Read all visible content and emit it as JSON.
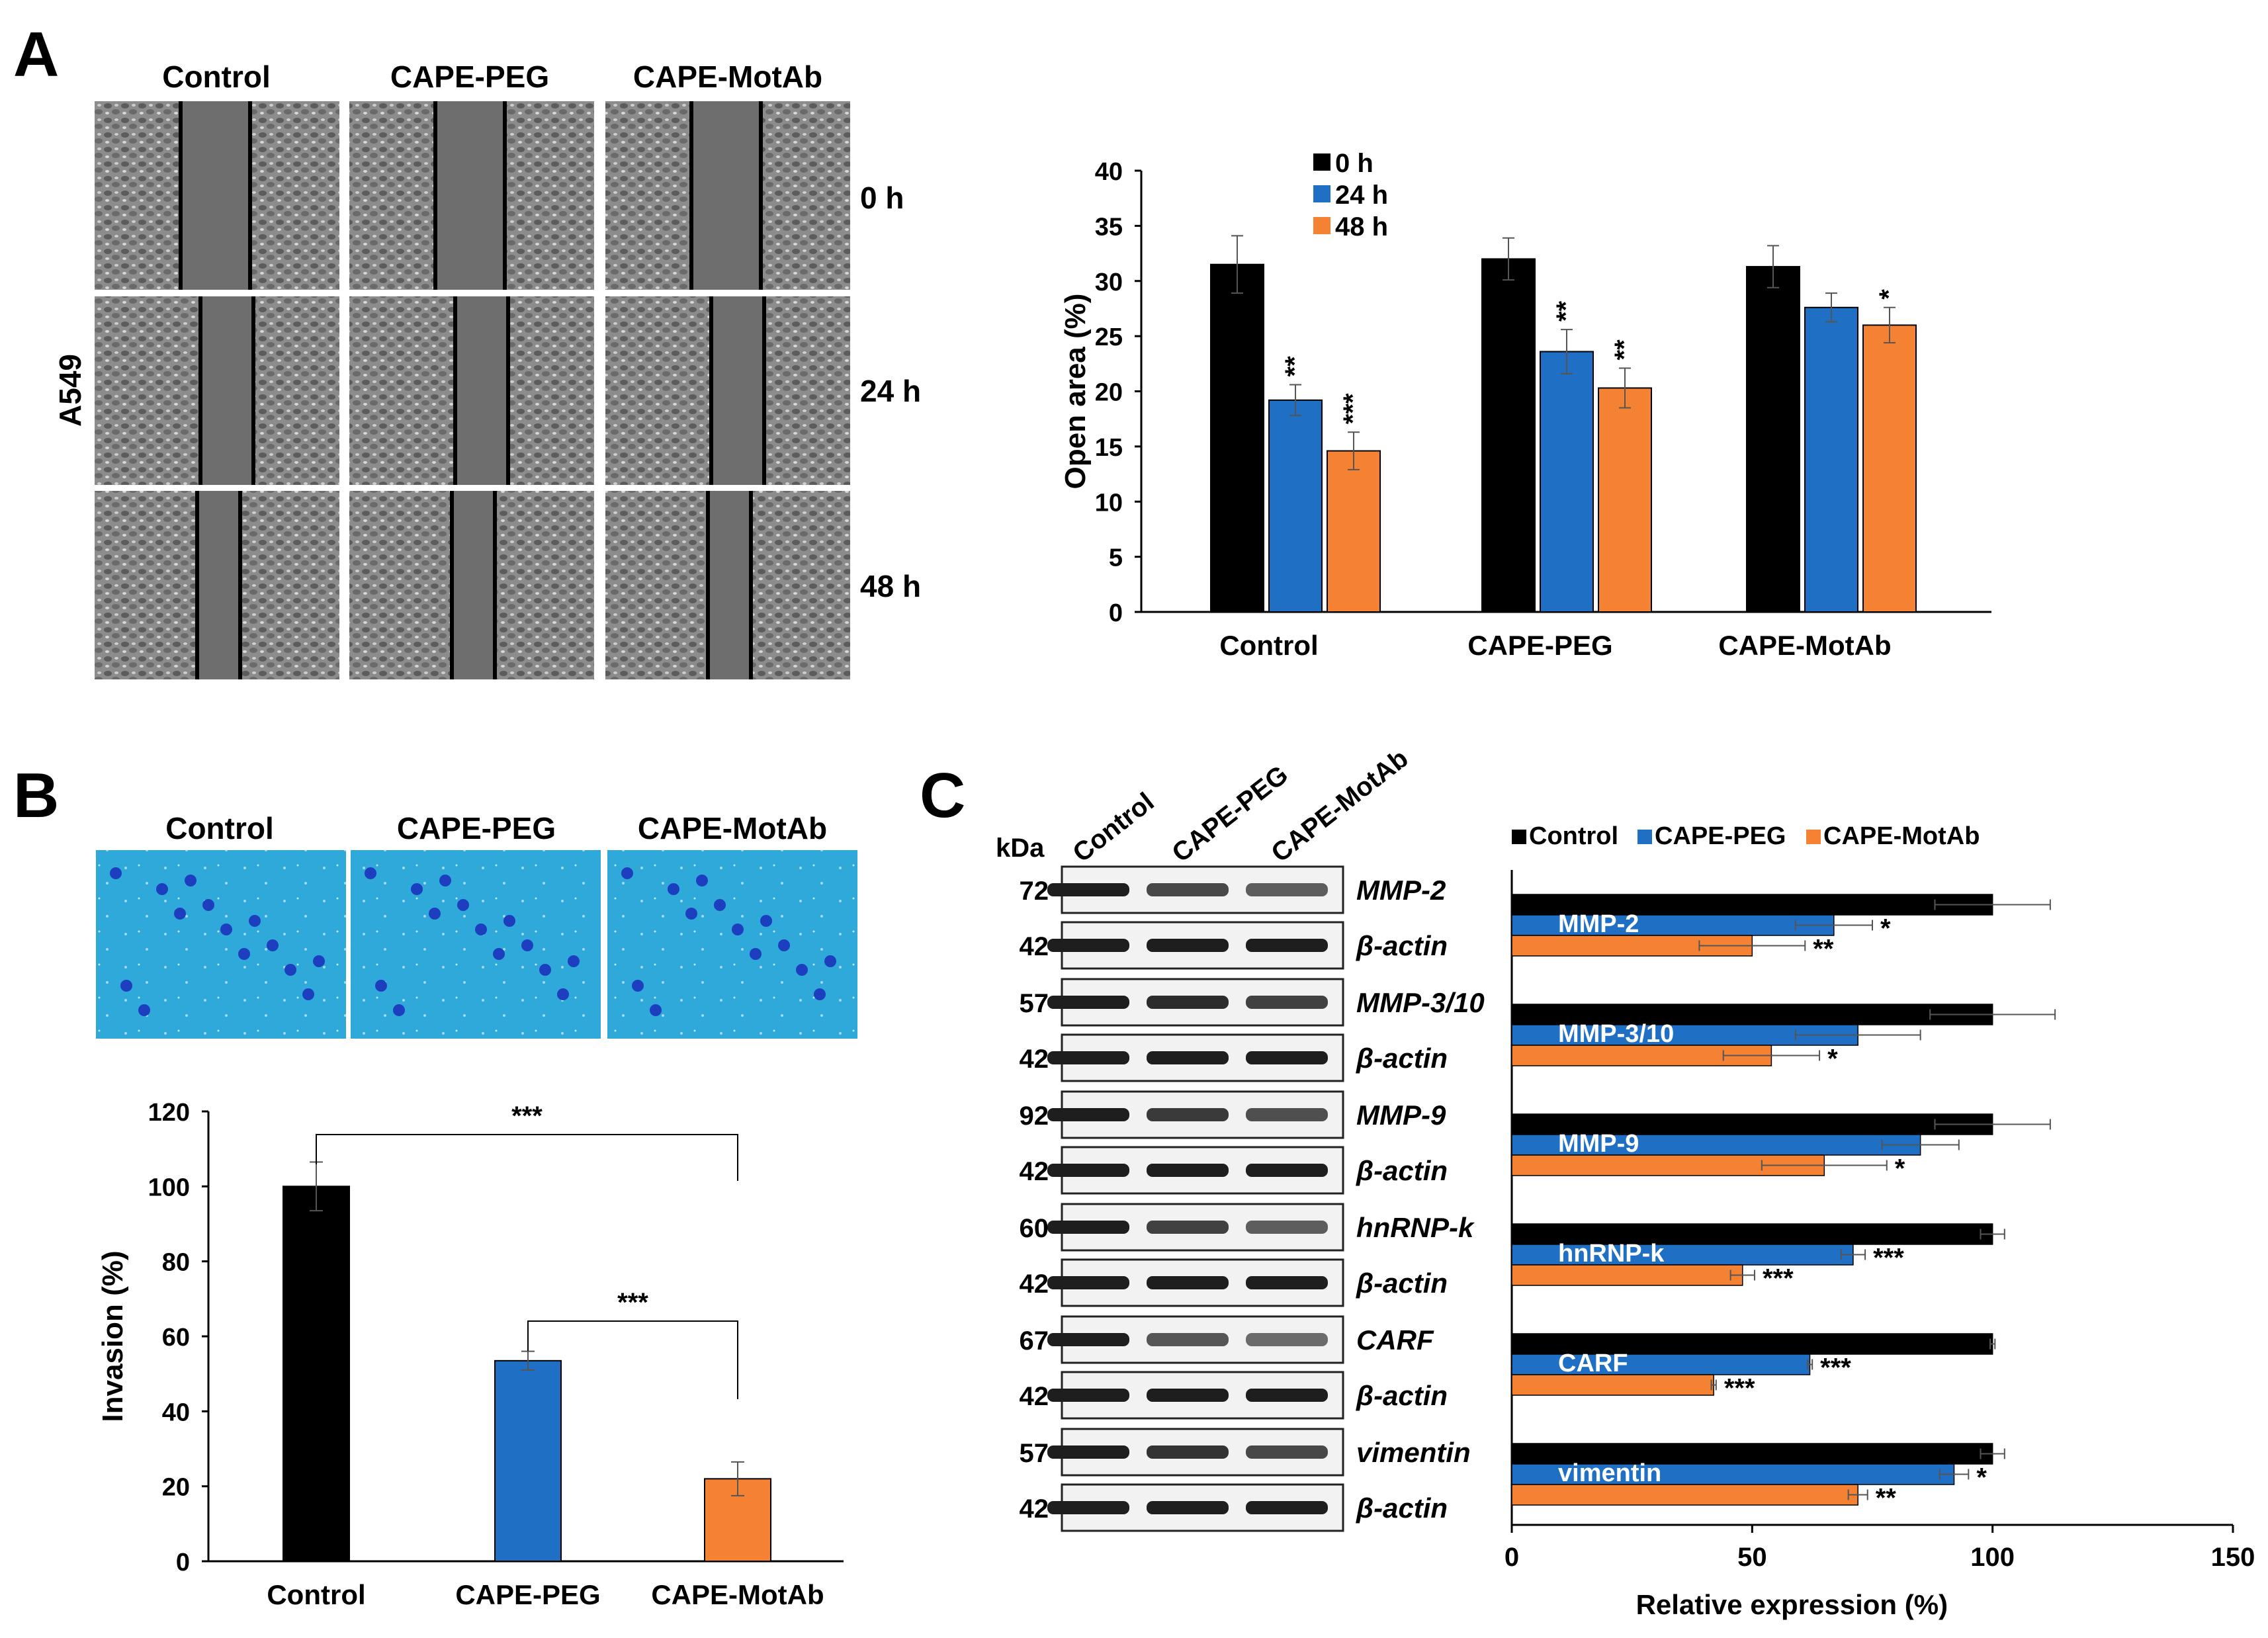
{
  "colors": {
    "black": "#000000",
    "blue": "#1f6fc5",
    "orange": "#f58232",
    "micro_bg": "#8a8a8a",
    "micro_gap": "#6e6e6e",
    "invasion_bg": "#2fa9d9",
    "blot_bg": "#f2f2f2"
  },
  "panelA": {
    "letter": "A",
    "columns": [
      "Control",
      "CAPE-PEG",
      "CAPE-MotAb"
    ],
    "rows": [
      "0 h",
      "24 h",
      "48 h"
    ],
    "cell_line": "A549",
    "chart_data": {
      "type": "bar",
      "categories": [
        "Control",
        "CAPE-PEG",
        "CAPE-MotAb"
      ],
      "series": [
        {
          "name": "0 h",
          "values": [
            31.5,
            32.0,
            31.3
          ],
          "errors": [
            2.6,
            1.9,
            1.9
          ],
          "sig": [
            "",
            "",
            ""
          ]
        },
        {
          "name": "24 h",
          "values": [
            19.2,
            23.6,
            27.6
          ],
          "errors": [
            1.4,
            2.0,
            1.3
          ],
          "sig": [
            "**",
            "**",
            ""
          ]
        },
        {
          "name": "48 h",
          "values": [
            14.6,
            20.3,
            26.0
          ],
          "errors": [
            1.7,
            1.8,
            1.6
          ],
          "sig": [
            "***",
            "**",
            "*"
          ]
        }
      ],
      "ylabel": "Open area (%)",
      "ylim": [
        0,
        40
      ],
      "yticks": [
        0,
        5,
        10,
        15,
        20,
        25,
        30,
        35,
        40
      ],
      "legend": "top-left"
    }
  },
  "panelB": {
    "letter": "B",
    "columns": [
      "Control",
      "CAPE-PEG",
      "CAPE-MotAb"
    ],
    "chart_data": {
      "type": "bar",
      "categories": [
        "Control",
        "CAPE-PEG",
        "CAPE-MotAb"
      ],
      "values": [
        100,
        53.5,
        22
      ],
      "errors": [
        6.5,
        2.5,
        4.5
      ],
      "ylabel": "Invasion (%)",
      "ylim": [
        0,
        120
      ],
      "yticks": [
        0,
        20,
        40,
        60,
        80,
        100,
        120
      ],
      "brackets": [
        {
          "from": "Control",
          "to": "CAPE-MotAb",
          "label": "***"
        },
        {
          "from": "CAPE-PEG",
          "to": "CAPE-MotAb",
          "label": "***"
        }
      ]
    }
  },
  "panelC": {
    "letter": "C",
    "kda_label": "kDa",
    "lanes": [
      "Control",
      "CAPE-PEG",
      "CAPE-MotAb"
    ],
    "blots": [
      {
        "kda": "72",
        "label": "MMP-2",
        "intensity": [
          1.0,
          0.7,
          0.55
        ]
      },
      {
        "kda": "42",
        "label": "β-actin",
        "intensity": [
          1,
          1,
          1
        ]
      },
      {
        "kda": "57",
        "label": "MMP-3/10",
        "intensity": [
          1.0,
          0.9,
          0.75
        ]
      },
      {
        "kda": "42",
        "label": "β-actin",
        "intensity": [
          1,
          1,
          1
        ]
      },
      {
        "kda": "92",
        "label": "MMP-9",
        "intensity": [
          1.0,
          0.8,
          0.65
        ]
      },
      {
        "kda": "42",
        "label": "β-actin",
        "intensity": [
          1,
          1,
          1
        ]
      },
      {
        "kda": "60",
        "label": "hnRNP-k",
        "intensity": [
          1.0,
          0.75,
          0.55
        ]
      },
      {
        "kda": "42",
        "label": "β-actin",
        "intensity": [
          1,
          1,
          1
        ]
      },
      {
        "kda": "67",
        "label": "CARF",
        "intensity": [
          1.0,
          0.6,
          0.45
        ]
      },
      {
        "kda": "42",
        "label": "β-actin",
        "intensity": [
          1,
          1,
          1
        ]
      },
      {
        "kda": "57",
        "label": "vimentin",
        "intensity": [
          1.0,
          0.85,
          0.7
        ]
      },
      {
        "kda": "42",
        "label": "β-actin",
        "intensity": [
          1,
          1,
          1
        ]
      }
    ],
    "chart_data": {
      "type": "bar",
      "orientation": "horizontal",
      "series_names": [
        "Control",
        "CAPE-PEG",
        "CAPE-MotAb"
      ],
      "groups": [
        {
          "label": "MMP-2",
          "values": [
            100,
            67,
            50
          ],
          "errors": [
            12,
            8,
            11
          ],
          "sig": [
            "",
            "*",
            "**"
          ]
        },
        {
          "label": "MMP-3/10",
          "values": [
            100,
            72,
            54
          ],
          "errors": [
            13,
            13,
            10
          ],
          "sig": [
            "",
            "",
            "*"
          ]
        },
        {
          "label": "MMP-9",
          "values": [
            100,
            85,
            65
          ],
          "errors": [
            12,
            8,
            13
          ],
          "sig": [
            "",
            "",
            "*"
          ]
        },
        {
          "label": "hnRNP-k",
          "values": [
            100,
            71,
            48
          ],
          "errors": [
            2.5,
            2.5,
            2.5
          ],
          "sig": [
            "",
            "***",
            "***"
          ]
        },
        {
          "label": "CARF",
          "values": [
            100,
            62,
            42
          ],
          "errors": [
            0.5,
            0.5,
            0.5
          ],
          "sig": [
            "",
            "***",
            "***"
          ]
        },
        {
          "label": "vimentin",
          "values": [
            100,
            92,
            72
          ],
          "errors": [
            2.5,
            3,
            2
          ],
          "sig": [
            "",
            "*",
            "**"
          ]
        }
      ],
      "xlabel": "Relative expression (%)",
      "xlim": [
        0,
        150
      ],
      "xticks": [
        0,
        50,
        100,
        150
      ],
      "legend": "top"
    }
  }
}
